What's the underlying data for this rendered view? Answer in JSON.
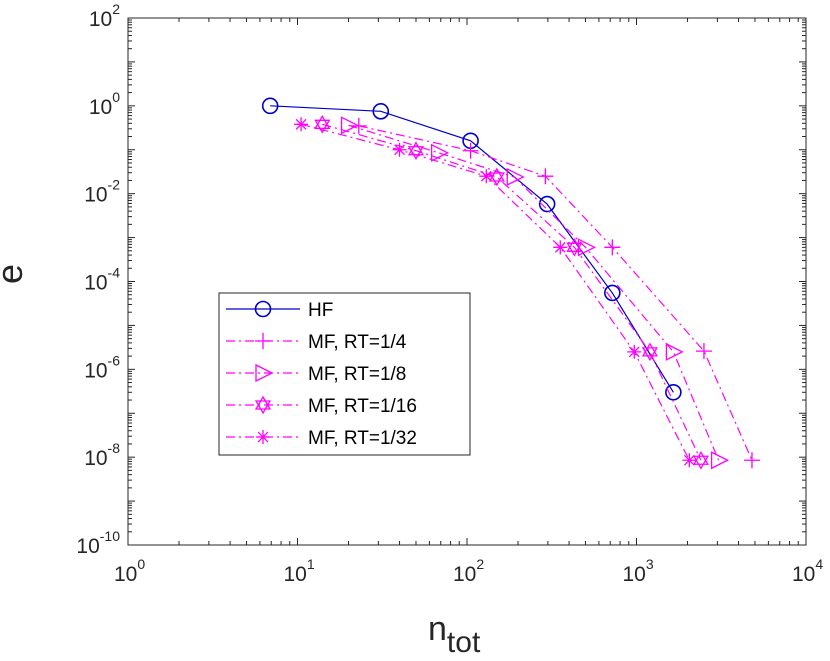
{
  "chart_data": {
    "type": "line",
    "xscale": "log",
    "yscale": "log",
    "xlabel": "n",
    "xlabel_sub": "tot",
    "ylabel": "e",
    "xlim": [
      1,
      10000
    ],
    "ylim": [
      1e-10,
      100
    ],
    "x_ticks": [
      {
        "value": 1,
        "base": "10",
        "exp": "0"
      },
      {
        "value": 10,
        "base": "10",
        "exp": "1"
      },
      {
        "value": 100,
        "base": "10",
        "exp": "2"
      },
      {
        "value": 1000,
        "base": "10",
        "exp": "3"
      },
      {
        "value": 10000,
        "base": "10",
        "exp": "4"
      }
    ],
    "y_ticks": [
      {
        "value": 1e-10,
        "base": "10",
        "exp": "-10"
      },
      {
        "value": 1e-08,
        "base": "10",
        "exp": "-8"
      },
      {
        "value": 1e-06,
        "base": "10",
        "exp": "-6"
      },
      {
        "value": 0.0001,
        "base": "10",
        "exp": "-4"
      },
      {
        "value": 0.01,
        "base": "10",
        "exp": "-2"
      },
      {
        "value": 1,
        "base": "10",
        "exp": "0"
      },
      {
        "value": 100,
        "base": "10",
        "exp": "2"
      }
    ],
    "legend_position": "bottom-left",
    "series": [
      {
        "name": "HF",
        "color": "#0000CC",
        "marker": "circle",
        "line": "solid",
        "x": [
          6.9,
          31,
          105,
          297,
          720,
          1650
        ],
        "y": [
          1.0,
          0.75,
          0.16,
          0.0058,
          5.5e-05,
          3e-07
        ]
      },
      {
        "name": "MF, RT=1/4",
        "color": "#FF00FF",
        "marker": "plus",
        "line": "dashdot",
        "x": [
          23,
          105,
          290,
          720,
          2500,
          4800
        ],
        "y": [
          0.35,
          0.095,
          0.025,
          0.0006,
          2.6e-06,
          8.5e-09
        ]
      },
      {
        "name": "MF, RT=1/8",
        "color": "#FF00FF",
        "marker": "triangle-right",
        "line": "dashdot",
        "x": [
          20,
          68,
          190,
          500,
          1650,
          3050
        ],
        "y": [
          0.36,
          0.085,
          0.024,
          0.0006,
          2.5e-06,
          8.5e-09
        ]
      },
      {
        "name": "MF, RT=1/16",
        "color": "#FF00FF",
        "marker": "hexagram",
        "line": "dashdot",
        "x": [
          14,
          50,
          150,
          430,
          1200,
          2400
        ],
        "y": [
          0.38,
          0.095,
          0.024,
          0.0006,
          2.5e-06,
          8.5e-09
        ]
      },
      {
        "name": "MF, RT=1/32",
        "color": "#FF00FF",
        "marker": "asterisk",
        "line": "dashdot",
        "x": [
          10.5,
          40,
          130,
          355,
          970,
          2050
        ],
        "y": [
          0.38,
          0.1,
          0.025,
          0.0006,
          2.5e-06,
          8.5e-09
        ]
      }
    ]
  }
}
